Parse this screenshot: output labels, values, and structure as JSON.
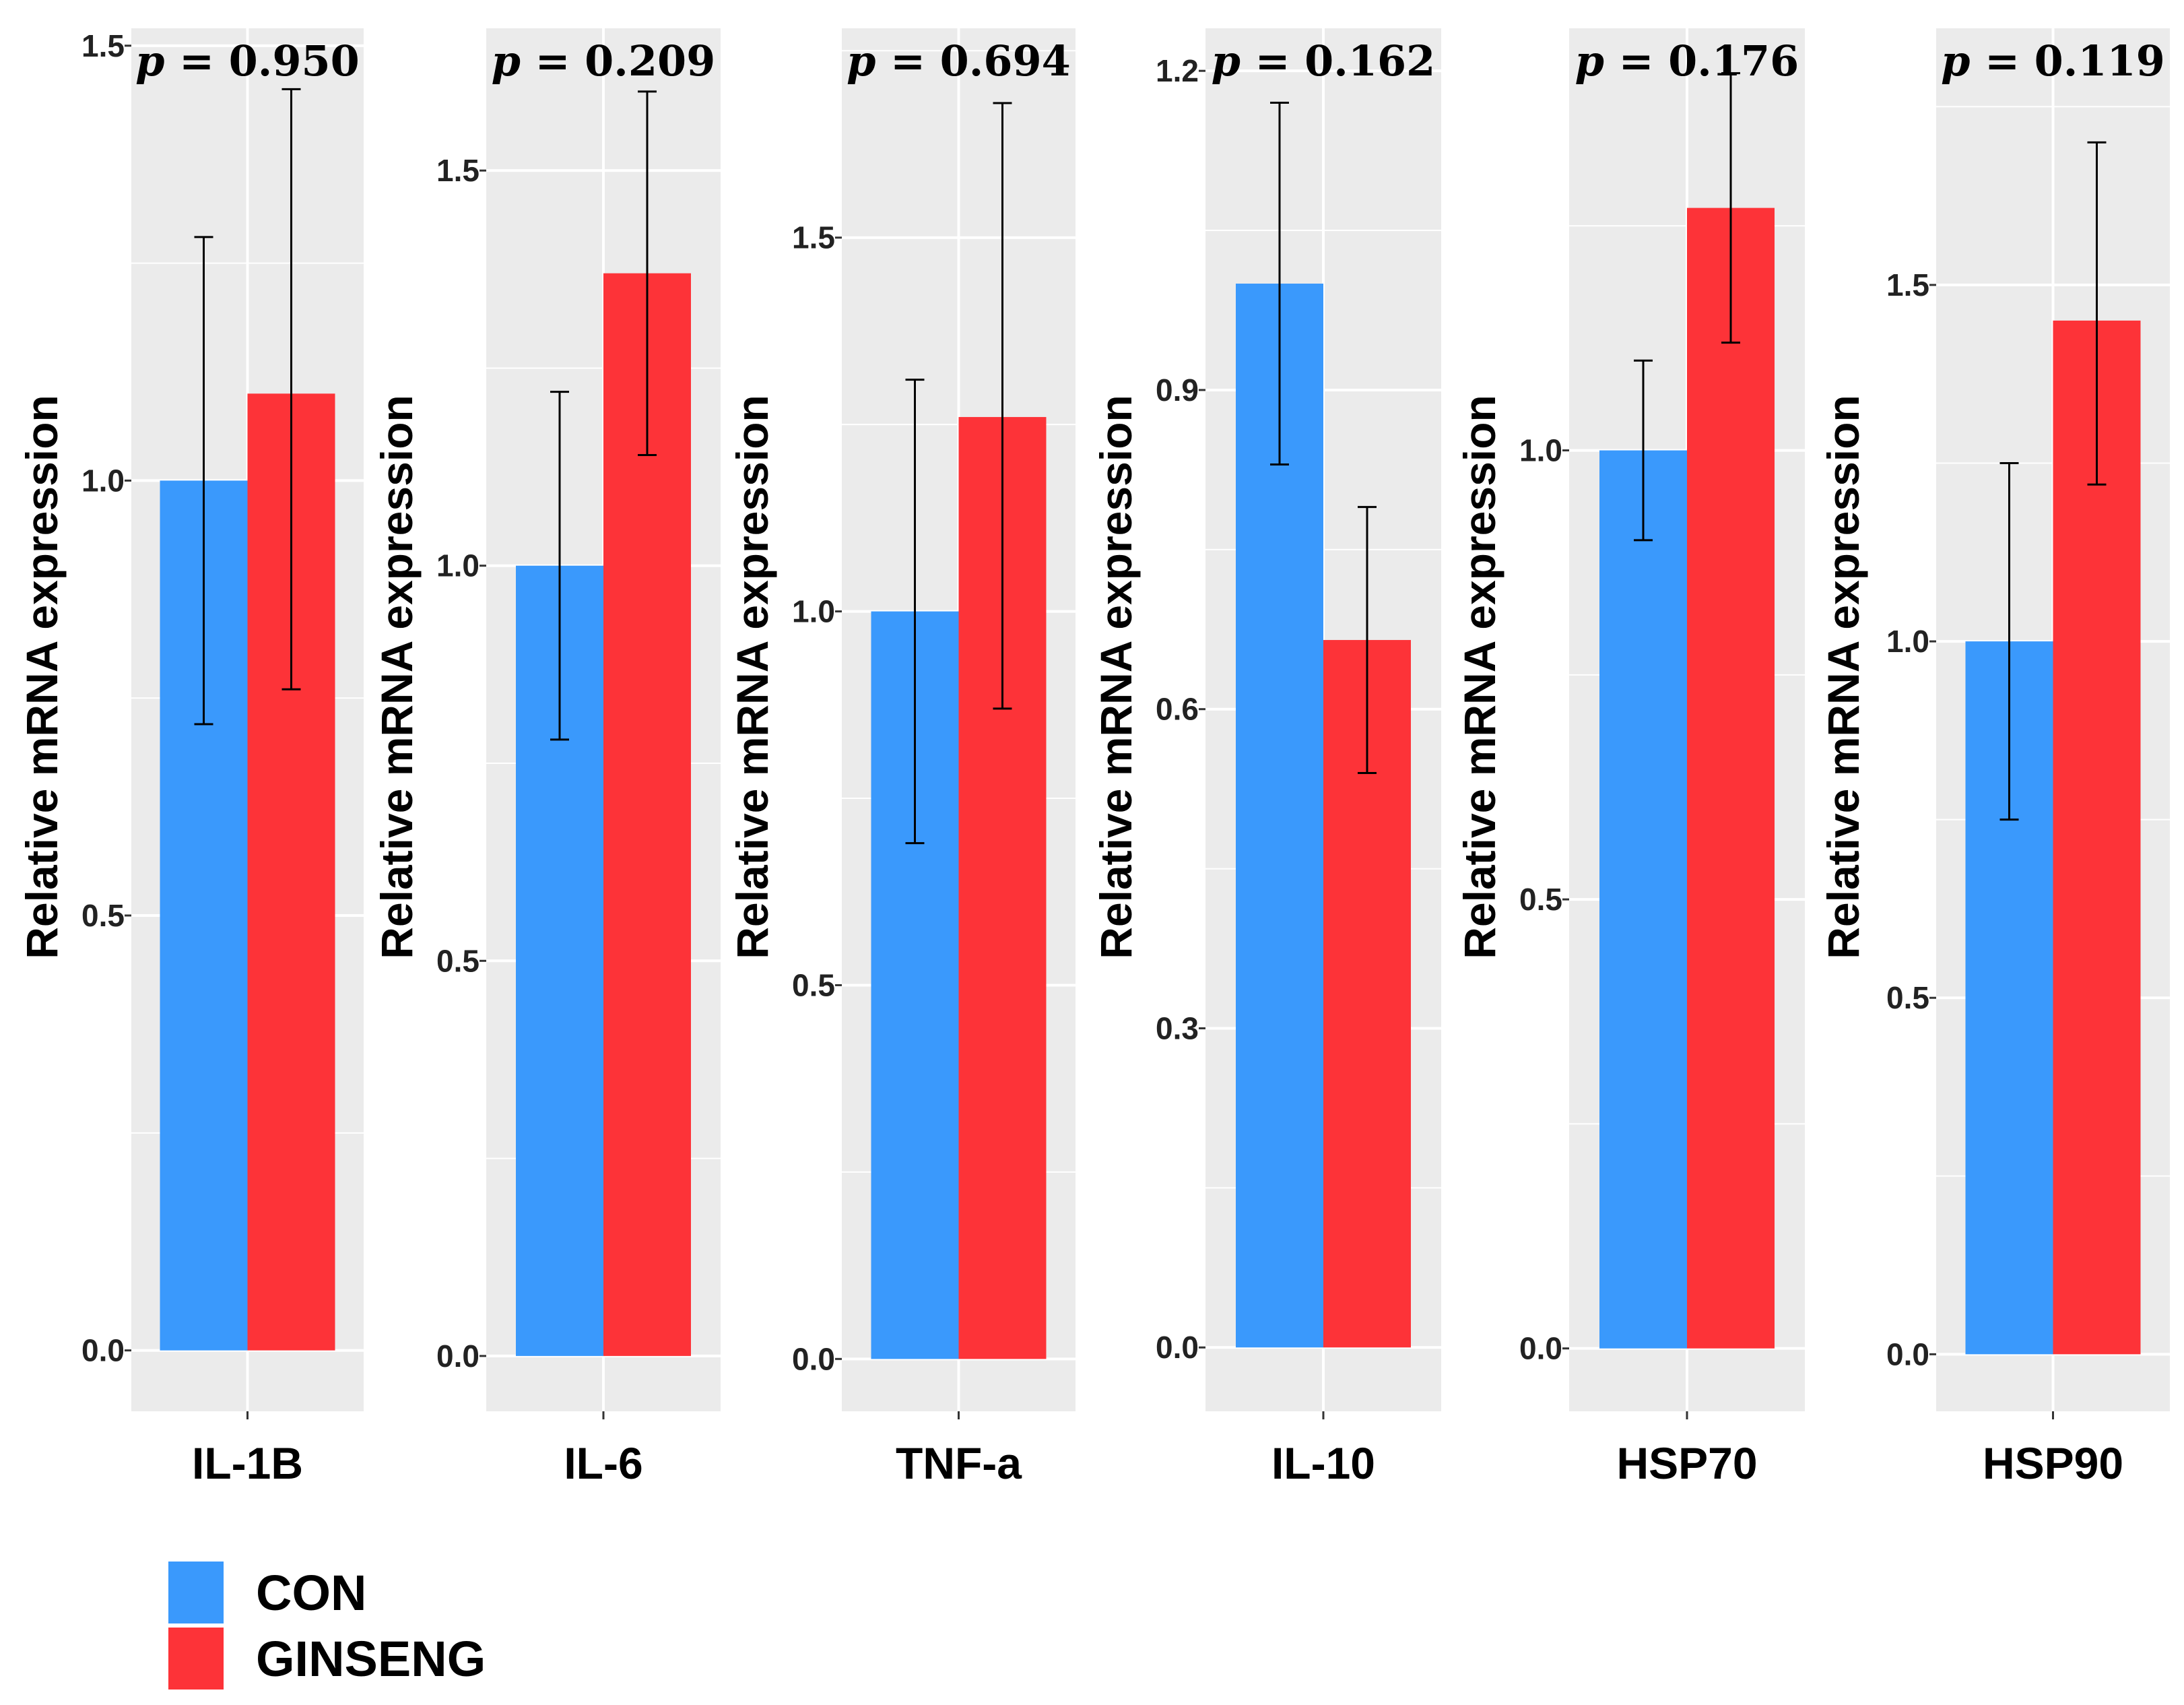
{
  "chart_data": {
    "type": "bar",
    "groups": [
      "CON",
      "GINSENG"
    ],
    "colors": {
      "CON": "#3a99fc",
      "GINSENG": "#fd3338",
      "panel_bg": "#ebebeb",
      "grid": "#ffffff"
    },
    "ylabel": "Relative mRNA expression",
    "panels": [
      {
        "category": "IL-1B",
        "p_symbol": "p",
        "p_equals": "=",
        "p_value": "0.950",
        "ylim": [
          -0.07,
          1.52
        ],
        "ticks": [
          "0.0",
          "0.5",
          "1.0",
          "1.5"
        ],
        "values": [
          1.0,
          1.1
        ],
        "err_high": [
          1.28,
          1.45
        ],
        "err_low": [
          0.72,
          0.76
        ]
      },
      {
        "category": "IL-6",
        "p_symbol": "p",
        "p_equals": "=",
        "p_value": "0.209",
        "ylim": [
          -0.07,
          1.68
        ],
        "ticks": [
          "0.0",
          "0.5",
          "1.0",
          "1.5"
        ],
        "values": [
          1.0,
          1.37
        ],
        "err_high": [
          1.22,
          1.6
        ],
        "err_low": [
          0.78,
          1.14
        ]
      },
      {
        "category": "TNF-a",
        "p_symbol": "p",
        "p_equals": "=",
        "p_value": "0.694",
        "ylim": [
          -0.07,
          1.78
        ],
        "ticks": [
          "0.0",
          "0.5",
          "1.0",
          "1.5"
        ],
        "values": [
          1.0,
          1.26
        ],
        "err_high": [
          1.31,
          1.68
        ],
        "err_low": [
          0.69,
          0.87
        ]
      },
      {
        "category": "IL-10",
        "p_symbol": "p",
        "p_equals": "=",
        "p_value": "0.162",
        "ylim": [
          -0.06,
          1.24
        ],
        "ticks": [
          "0.0",
          "0.3",
          "0.6",
          "0.9",
          "1.2"
        ],
        "values": [
          1.0,
          0.665
        ],
        "err_high": [
          1.17,
          0.79
        ],
        "err_low": [
          0.83,
          0.54
        ]
      },
      {
        "category": "HSP70",
        "p_symbol": "p",
        "p_equals": "=",
        "p_value": "0.176",
        "ylim": [
          -0.07,
          1.47
        ],
        "ticks": [
          "0.0",
          "0.5",
          "1.0"
        ],
        "values": [
          1.0,
          1.27
        ],
        "err_high": [
          1.1,
          1.42
        ],
        "err_low": [
          0.9,
          1.12
        ]
      },
      {
        "category": "HSP90",
        "p_symbol": "p",
        "p_equals": "=",
        "p_value": "0.119",
        "ylim": [
          -0.08,
          1.86
        ],
        "ticks": [
          "0.0",
          "0.5",
          "1.0",
          "1.5"
        ],
        "values": [
          1.0,
          1.45
        ],
        "err_high": [
          1.25,
          1.7
        ],
        "err_low": [
          0.75,
          1.22
        ]
      }
    ],
    "legend": {
      "position": "bottom-left",
      "items": [
        "CON",
        "GINSENG"
      ]
    }
  }
}
